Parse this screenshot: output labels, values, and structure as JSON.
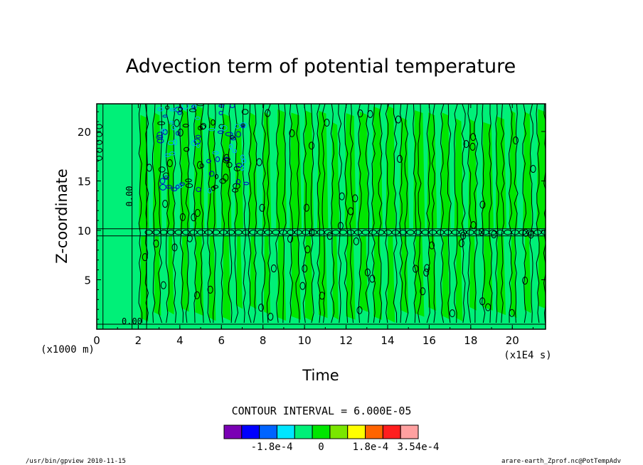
{
  "chart_data": {
    "type": "heatmap",
    "title": "Advection term of potential temperature",
    "xlabel": "Time",
    "ylabel": "Z-coordinate",
    "x_unit": "(x1E4 s)",
    "y_unit": "(x1000 m)",
    "xlim": [
      0,
      21.6
    ],
    "ylim": [
      0,
      22.8
    ],
    "x_ticks": [
      0,
      2,
      4,
      6,
      8,
      10,
      12,
      14,
      16,
      18,
      20
    ],
    "y_ticks": [
      5,
      10,
      15,
      20
    ],
    "x_tick_labels": [
      "0",
      "2",
      "4",
      "6",
      "8",
      "10",
      "12",
      "14",
      "16",
      "18",
      "20"
    ],
    "y_tick_labels": [
      "5",
      "10",
      "15",
      "20"
    ],
    "contour_interval_text": "CONTOUR INTERVAL = 6.000E-05",
    "contour_labels": [
      "0.00",
      "0.00",
      "0.00"
    ],
    "colorbar": {
      "colors": [
        "#7a00b4",
        "#0000ff",
        "#0064ff",
        "#00e6ff",
        "#00f078",
        "#00e600",
        "#7ae600",
        "#ffff00",
        "#ff6400",
        "#ff1e1e",
        "#ffa0a0"
      ],
      "labels": [
        "-1.8e-4",
        "0",
        "1.8e-4",
        "3.54e-4"
      ],
      "label_values": [
        -0.00018,
        0,
        0.00018,
        0.000354
      ],
      "bounds": [
        -0.000354,
        0.000354
      ]
    },
    "background_field": {
      "description_values": "field near zero with alternating positive/negative vertical bands",
      "zero_color": "#00f078",
      "positive_color": "#00e600",
      "band_period": 0.66,
      "center_line_z": 9.8
    }
  },
  "footer": {
    "left": "/usr/bin/gpview   2010-11-15",
    "right": "arare-earth_Zprof.nc@PotTempAdv"
  }
}
